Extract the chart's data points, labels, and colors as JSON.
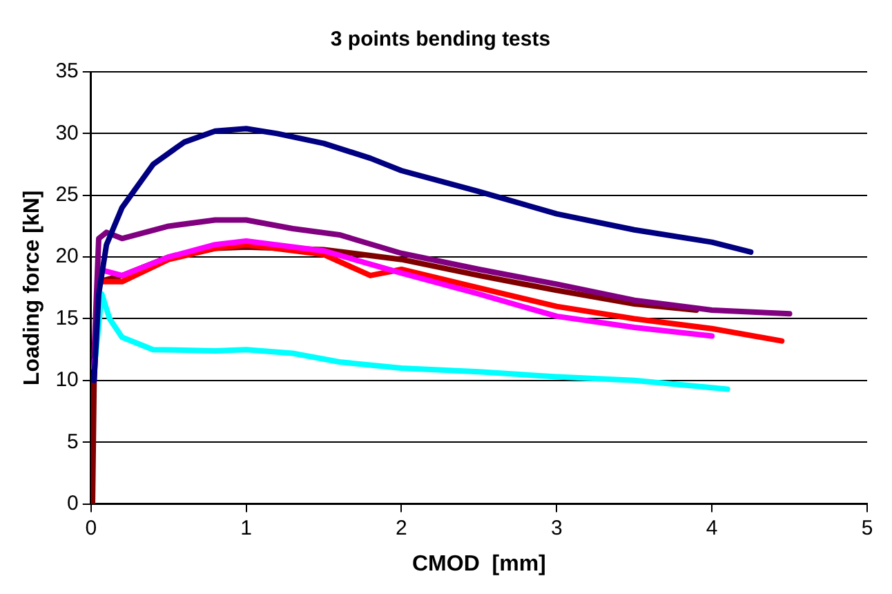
{
  "chart_data": {
    "type": "line",
    "title": "3 points bending tests",
    "xlabel": "CMOD  [mm]",
    "ylabel": "Loading force [kN]",
    "xlim": [
      0,
      5
    ],
    "xticks": [
      0,
      1,
      2,
      3,
      4,
      5
    ],
    "ylim": [
      0,
      35
    ],
    "yticks": [
      0,
      5,
      10,
      15,
      20,
      25,
      30,
      35
    ],
    "grid": "y",
    "legend": false,
    "marker": "none",
    "line_style": "solid",
    "series": [
      {
        "color": "#000080",
        "x": [
          0.02,
          0.05,
          0.1,
          0.2,
          0.4,
          0.6,
          0.8,
          1.0,
          1.2,
          1.5,
          1.8,
          2.0,
          2.5,
          3.0,
          3.5,
          4.0,
          4.25
        ],
        "values": [
          10,
          17,
          21,
          24,
          27.5,
          29.3,
          30.2,
          30.4,
          30,
          29.2,
          28,
          27,
          25.3,
          23.5,
          22.2,
          21.2,
          20.4
        ]
      },
      {
        "color": "#800080",
        "x": [
          0.02,
          0.05,
          0.1,
          0.2,
          0.5,
          0.8,
          1.0,
          1.3,
          1.6,
          2.0,
          2.5,
          3.0,
          3.5,
          4.0,
          4.5
        ],
        "values": [
          12,
          21.5,
          22,
          21.5,
          22.5,
          23,
          23,
          22.3,
          21.8,
          20.3,
          19,
          17.8,
          16.5,
          15.7,
          15.4
        ]
      },
      {
        "color": "#ff00ff",
        "x": [
          0.02,
          0.05,
          0.2,
          0.5,
          0.8,
          1.0,
          1.5,
          2.0,
          2.5,
          3.0,
          3.5,
          4.0
        ],
        "values": [
          11,
          19,
          18.5,
          20,
          21,
          21.3,
          20.5,
          18.7,
          17,
          15.2,
          14.3,
          13.6
        ]
      },
      {
        "color": "#ff0000",
        "x": [
          0.02,
          0.05,
          0.2,
          0.5,
          0.8,
          1.0,
          1.5,
          1.8,
          2.0,
          2.5,
          3.0,
          3.5,
          4.0,
          4.45
        ],
        "values": [
          11,
          18,
          18,
          19.8,
          20.7,
          21,
          20.2,
          18.5,
          19,
          17.5,
          16,
          15,
          14.2,
          13.2
        ]
      },
      {
        "color": "#00ffff",
        "x": [
          0.03,
          0.07,
          0.12,
          0.2,
          0.4,
          0.8,
          1.0,
          1.3,
          1.6,
          2.0,
          2.5,
          3.0,
          3.5,
          4.1
        ],
        "values": [
          12,
          17,
          15,
          13.5,
          12.5,
          12.4,
          12.5,
          12.2,
          11.5,
          11,
          10.7,
          10.3,
          10,
          9.3
        ]
      },
      {
        "color": "#800000",
        "x": [
          0.01,
          0.02,
          0.05,
          0.2,
          0.5,
          0.8,
          1.0,
          1.5,
          2.0,
          2.5,
          3.0,
          3.5,
          3.9
        ],
        "values": [
          0,
          10,
          18,
          18.5,
          20,
          20.7,
          20.8,
          20.6,
          19.8,
          18.5,
          17.3,
          16.2,
          15.7
        ]
      }
    ]
  }
}
